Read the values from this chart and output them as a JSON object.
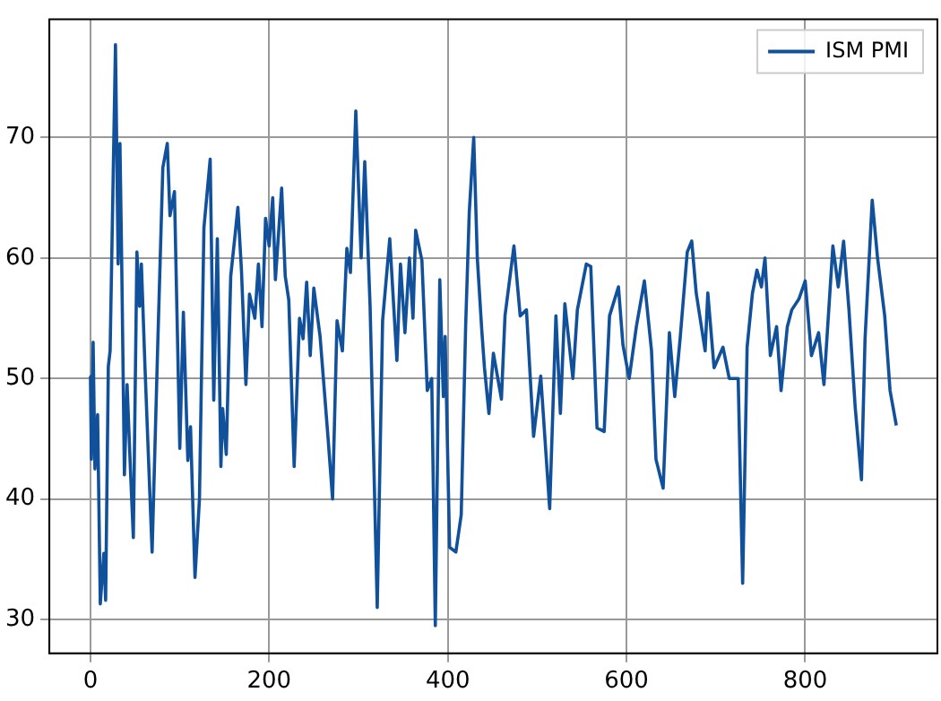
{
  "chart_data": {
    "type": "line",
    "legend": "top right",
    "grid": true,
    "marker": "none",
    "line_style": "solid",
    "xlim": [
      -46,
      948
    ],
    "xticks": [
      0,
      200,
      400,
      600,
      800
    ],
    "ylim": [
      27.2,
      79.8
    ],
    "yticks": [
      30,
      40,
      50,
      60,
      70
    ],
    "series": [
      {
        "name": "ISM PMI",
        "color": "#11519b",
        "x": [
          0,
          1,
          3,
          5,
          8,
          11,
          15,
          17,
          20,
          22,
          28,
          31,
          33,
          35,
          38,
          41,
          45,
          48,
          52,
          55,
          57,
          61,
          69,
          75,
          81,
          86,
          89,
          94,
          100,
          104,
          109,
          112,
          117,
          122,
          127,
          134,
          138,
          142,
          146,
          148,
          152,
          157,
          162,
          165,
          169,
          174,
          178,
          184,
          188,
          192,
          196,
          200,
          204,
          207,
          214,
          218,
          222,
          228,
          234,
          238,
          242,
          246,
          250,
          257,
          266,
          271,
          276,
          282,
          287,
          291,
          297,
          303,
          307,
          313,
          321,
          327,
          335,
          343,
          347,
          352,
          357,
          361,
          364,
          371,
          377,
          382,
          386,
          391,
          395,
          397,
          402,
          409,
          415,
          420,
          424,
          429,
          433,
          438,
          441,
          446,
          451,
          460,
          464,
          474,
          481,
          488,
          496,
          504,
          514,
          521,
          526,
          531,
          540,
          545,
          555,
          560,
          567,
          575,
          581,
          591,
          596,
          603,
          611,
          620,
          628,
          633,
          641,
          648,
          654,
          660,
          668,
          673,
          678,
          688,
          691,
          698,
          708,
          715,
          725,
          730,
          735,
          741,
          746,
          751,
          755,
          761,
          768,
          773,
          780,
          785,
          793,
          800,
          807,
          815,
          821,
          831,
          837,
          843,
          849,
          856,
          863,
          867,
          875,
          881,
          889,
          895,
          902
        ],
        "values": [
          50.2,
          43.3,
          53,
          42.5,
          47,
          31.3,
          35.5,
          31.6,
          51,
          52.3,
          77.7,
          59.5,
          69.5,
          59.5,
          42,
          49.5,
          42,
          36.8,
          60.5,
          56,
          59.5,
          51,
          35.6,
          52,
          67.5,
          69.5,
          63.5,
          65.5,
          44.2,
          55.5,
          43.2,
          46,
          33.5,
          40,
          62.5,
          68.2,
          48.2,
          61.6,
          42.7,
          47.5,
          43.7,
          58.5,
          62,
          64.2,
          59,
          49.5,
          57,
          55,
          59.5,
          54.3,
          63.3,
          61,
          65,
          58.2,
          65.8,
          58.5,
          56.5,
          42.7,
          55,
          53.3,
          58,
          51.9,
          57.5,
          53.5,
          45,
          40,
          54.8,
          52.3,
          60.8,
          58.8,
          72.2,
          60,
          68,
          56,
          31,
          54.8,
          61.6,
          51.5,
          59.5,
          53.8,
          60,
          55,
          62.3,
          59.8,
          49,
          50,
          29.5,
          58.2,
          48.5,
          53.5,
          36,
          35.6,
          38.7,
          54.5,
          63.8,
          70,
          60,
          54,
          50.9,
          47.1,
          52.1,
          48.3,
          55.2,
          61,
          55.2,
          55.7,
          45.2,
          50.2,
          39.2,
          55.2,
          47.1,
          56.2,
          50,
          55.7,
          59.5,
          59.3,
          45.9,
          45.6,
          55.2,
          57.6,
          52.8,
          50,
          54.3,
          58.1,
          52.3,
          43.3,
          40.9,
          53.8,
          48.5,
          53.3,
          60.5,
          61.4,
          57.1,
          52.3,
          57.1,
          50.9,
          52.6,
          50,
          50,
          33,
          52.6,
          57.1,
          59,
          57.6,
          60,
          51.9,
          54.3,
          49,
          54.3,
          55.7,
          56.6,
          58.1,
          51.9,
          53.8,
          49.5,
          61,
          57.6,
          61.4,
          55.7,
          47.6,
          41.6,
          53.3,
          64.8,
          60,
          55.2,
          49,
          46.1
        ]
      }
    ]
  }
}
